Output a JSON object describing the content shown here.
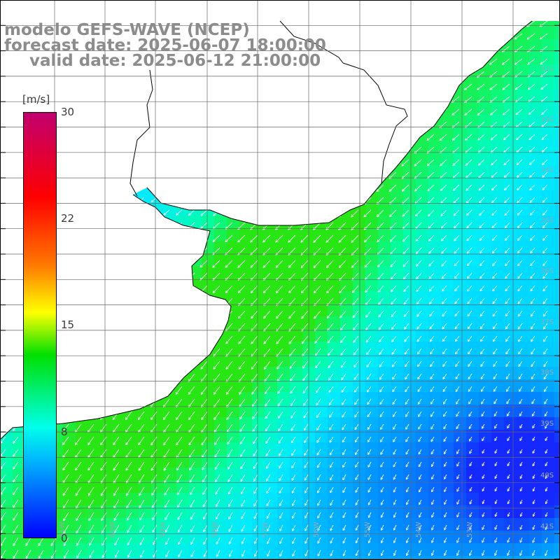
{
  "title": {
    "line1": "modelo GEFS-WAVE (NCEP)",
    "line2": "forecast date: 2025-06-07 18:00:00",
    "line3": "valid date: 2025-06-12 21:00:00"
  },
  "colorbar": {
    "unit": "[m/s]",
    "ticks": [
      "30",
      "22",
      "15",
      "8",
      "0"
    ],
    "colors": [
      "#c2006f",
      "#ff0000",
      "#ff7a00",
      "#ffff00",
      "#00e000",
      "#00ffea",
      "#00b4ff",
      "#0000ff"
    ]
  },
  "map": {
    "lat_labels": [
      "32S",
      "33S",
      "34S",
      "35S",
      "36S",
      "37S",
      "38S",
      "39S",
      "40S",
      "41S"
    ],
    "lon_labels": [
      "61W",
      "60W",
      "59W",
      "58W",
      "57W",
      "56W",
      "55W",
      "54W",
      "53W"
    ],
    "land_color": "#ffffff",
    "arrow_color": "#ffffff",
    "wind_direction": "from north-east toward south-west"
  }
}
